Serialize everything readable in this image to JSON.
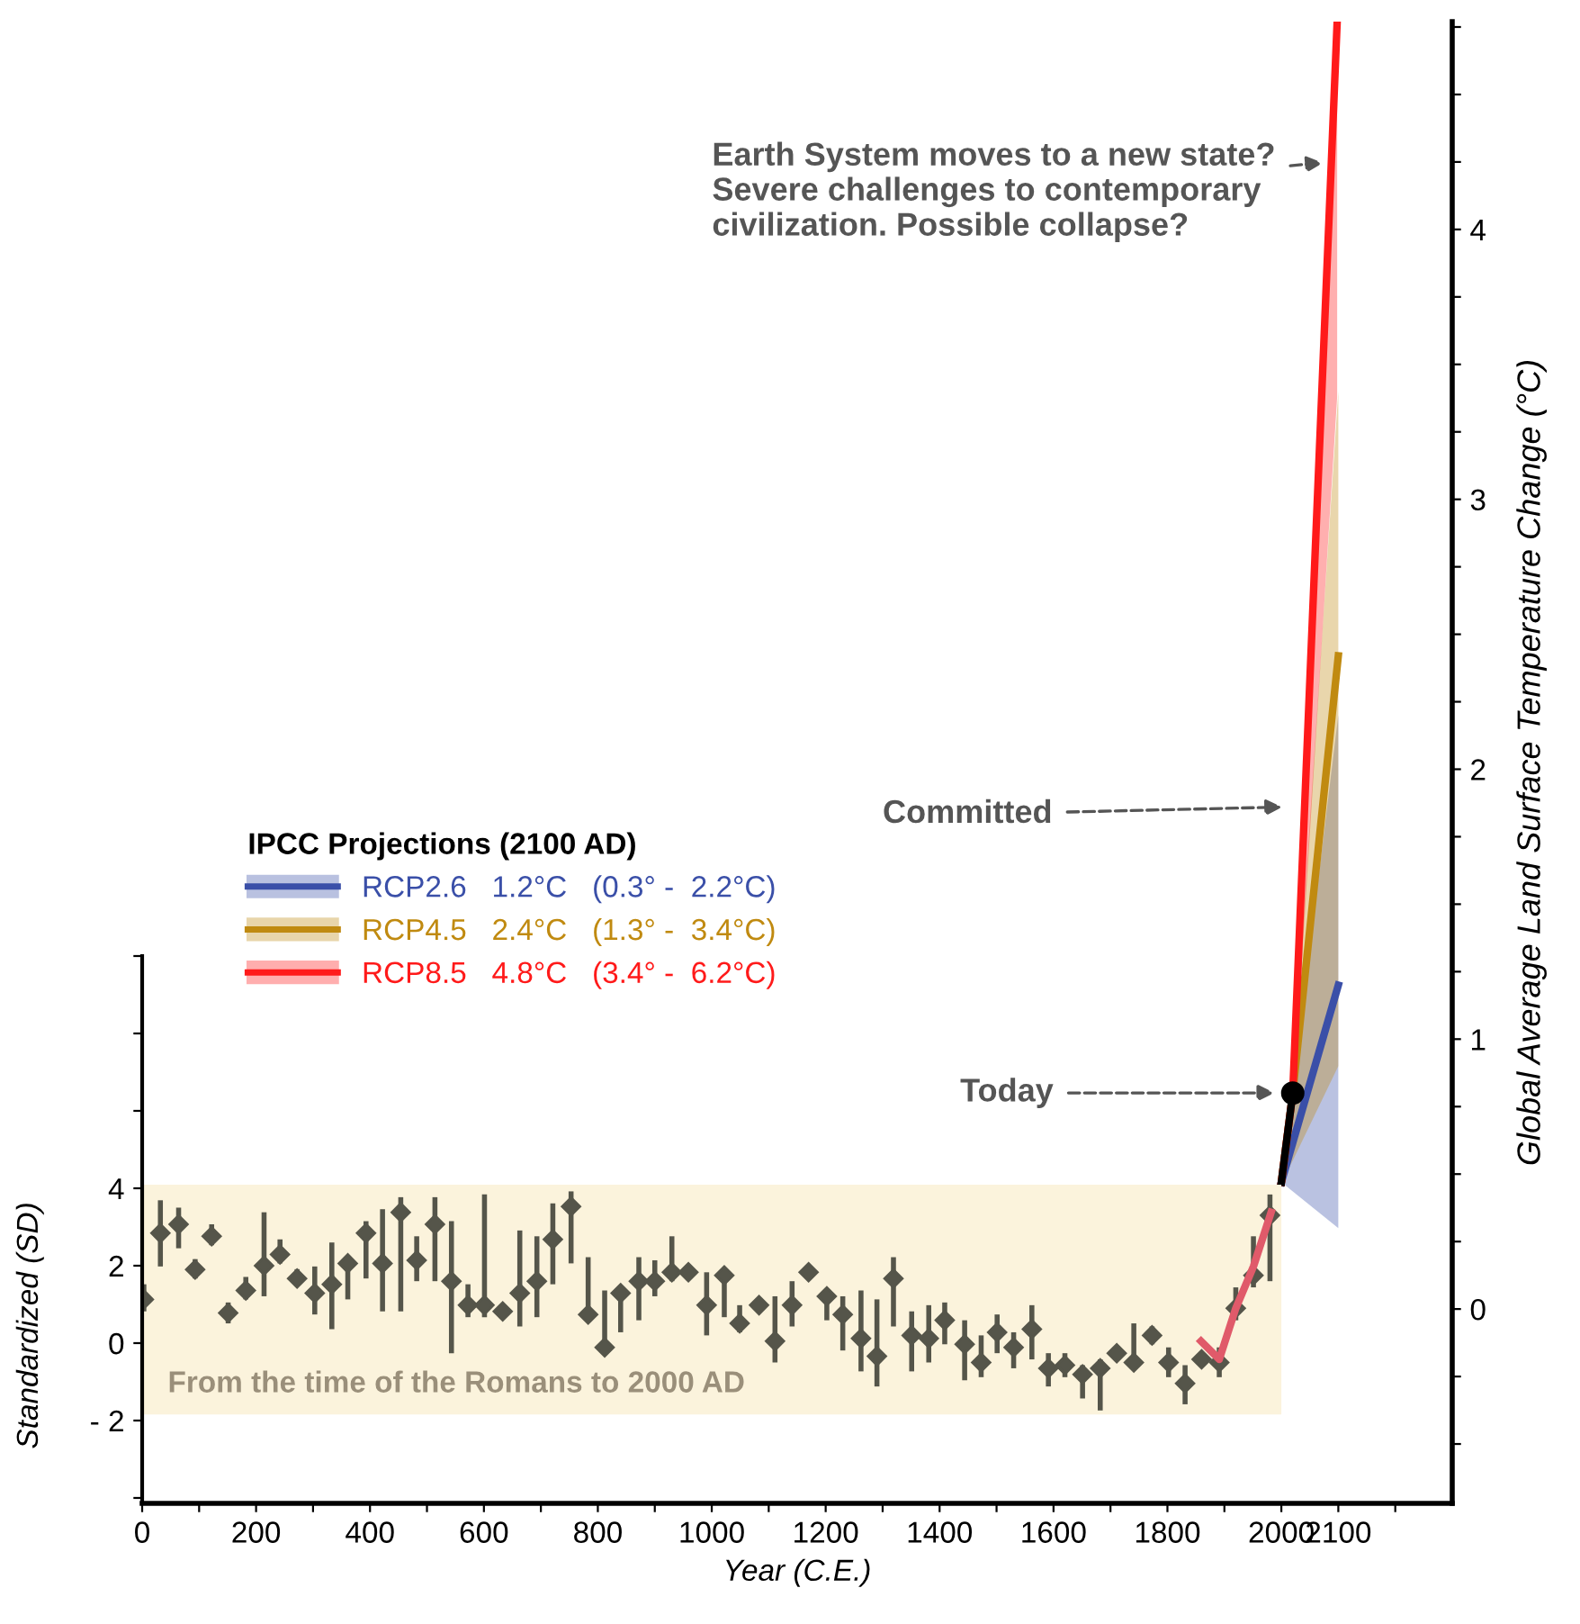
{
  "chart_data": {
    "type": "scatter",
    "xlabel": "Year (C.E.)",
    "ylabel": "Standardized (SD)",
    "y2label": "Global Average Land Surface Temperature Change (°C)",
    "legend_title": "IPCC Projections (2100 AD)",
    "legend": "left",
    "xlim": [
      0,
      2300
    ],
    "xticks": [
      0,
      {
        "value": 100,
        "label": null
      },
      200,
      {
        "value": 300,
        "label": null
      },
      400,
      {
        "value": 500,
        "label": null
      },
      600,
      {
        "value": 700,
        "label": null
      },
      800,
      {
        "value": 900,
        "label": null
      },
      1000,
      {
        "value": 1100,
        "label": null
      },
      1200,
      {
        "value": 1300,
        "label": null
      },
      1400,
      {
        "value": 1500,
        "label": null
      },
      1600,
      {
        "value": 1700,
        "label": null
      },
      1800,
      {
        "value": 1900,
        "label": null
      },
      2000,
      2100,
      {
        "value": 2200,
        "label": null
      }
    ],
    "ylim": [
      -4.14,
      34.14
    ],
    "yticks": [
      {
        "value": -4,
        "label": null
      },
      {
        "value": -2,
        "label": "- 2"
      },
      0,
      2,
      4,
      {
        "value": 6,
        "label": null
      },
      {
        "value": 8,
        "label": null
      },
      {
        "value": 10,
        "label": null
      }
    ],
    "y2lim": [
      -0.72,
      4.77
    ],
    "y2ticks": [
      {
        "value": -0.5,
        "label": null
      },
      {
        "value": -0.25,
        "label": null
      },
      0,
      {
        "value": 0.25,
        "label": null
      },
      {
        "value": 0.5,
        "label": null
      },
      {
        "value": 0.75,
        "label": null
      },
      1,
      {
        "value": 1.25,
        "label": null
      },
      {
        "value": 1.5,
        "label": null
      },
      {
        "value": 1.75,
        "label": null
      },
      2,
      {
        "value": 2.25,
        "label": null
      },
      {
        "value": 2.5,
        "label": null
      },
      {
        "value": 2.75,
        "label": null
      },
      3,
      {
        "value": 3.25,
        "label": null
      },
      {
        "value": 3.5,
        "label": null
      },
      {
        "value": 3.75,
        "label": null
      },
      4,
      {
        "value": 4.25,
        "label": null
      },
      {
        "value": 4.5,
        "label": null
      },
      {
        "value": 4.75,
        "label": null
      }
    ],
    "bands": [
      {
        "axis": "x",
        "from": 0,
        "to": 2000,
        "label": "From the time of the Romans to 2000 AD",
        "color": "#fbf3dc"
      }
    ],
    "series": [
      {
        "axis": "y",
        "color": "#55554a",
        "marker": "diamond",
        "x": [
          3,
          32,
          64,
          93,
          122,
          151,
          182,
          214,
          242,
          272,
          303,
          333,
          361,
          393,
          422,
          454,
          482,
          514,
          543,
          572,
          601,
          633,
          663,
          693,
          721,
          753,
          783,
          812,
          840,
          872,
          900,
          930,
          959,
          991,
          1022,
          1049,
          1083,
          1111,
          1141,
          1170,
          1202,
          1230,
          1262,
          1290,
          1319,
          1351,
          1381,
          1409,
          1444,
          1473,
          1501,
          1530,
          1562,
          1591,
          1620,
          1651,
          1682,
          1711,
          1741,
          1773,
          1802,
          1831,
          1860,
          1891,
          1920,
          1951,
          1980
        ],
        "values": [
          1.13,
          2.84,
          3.07,
          1.9,
          2.76,
          0.78,
          1.36,
          2.0,
          2.29,
          1.67,
          1.29,
          1.52,
          2.06,
          2.84,
          2.06,
          3.38,
          2.14,
          3.07,
          1.6,
          0.98,
          0.98,
          0.82,
          1.29,
          1.6,
          2.68,
          3.53,
          0.74,
          -0.11,
          1.29,
          1.6,
          1.6,
          1.83,
          1.83,
          0.98,
          1.75,
          0.51,
          0.98,
          0.05,
          0.98,
          1.83,
          1.21,
          0.74,
          0.12,
          -0.34,
          1.67,
          0.2,
          0.12,
          0.59,
          -0.03,
          -0.5,
          0.28,
          -0.11,
          0.36,
          -0.65,
          -0.57,
          -0.81,
          -0.65,
          -0.26,
          -0.5,
          0.2,
          -0.5,
          -1.04,
          -0.42,
          -0.5,
          0.9,
          1.75,
          3.3
        ],
        "errors": [
          [
            0.82,
            1.52
          ],
          [
            1.98,
            3.69
          ],
          [
            2.45,
            3.5
          ],
          [
            1.67,
            2.17
          ],
          [
            2.53,
            3.07
          ],
          [
            0.51,
            1.05
          ],
          [
            1.13,
            1.71
          ],
          [
            1.21,
            3.38
          ],
          [
            2.06,
            2.68
          ],
          [
            1.49,
            1.91
          ],
          [
            0.74,
            1.98
          ],
          [
            0.36,
            2.6
          ],
          [
            1.13,
            2.22
          ],
          [
            1.67,
            3.15
          ],
          [
            0.82,
            3.46
          ],
          [
            0.82,
            3.77
          ],
          [
            1.6,
            2.76
          ],
          [
            1.6,
            3.77
          ],
          [
            -0.26,
            3.15
          ],
          [
            0.67,
            1.52
          ],
          [
            0.67,
            3.84
          ],
          [
            0.67,
            0.98
          ],
          [
            0.43,
            2.91
          ],
          [
            0.67,
            2.76
          ],
          [
            1.52,
            3.61
          ],
          [
            2.06,
            3.92
          ],
          [
            0.59,
            2.22
          ],
          [
            -0.26,
            1.36
          ],
          [
            0.28,
            1.36
          ],
          [
            0.59,
            2.22
          ],
          [
            1.21,
            2.14
          ],
          [
            1.6,
            2.76
          ],
          [
            1.67,
            1.98
          ],
          [
            0.2,
            1.83
          ],
          [
            0.67,
            1.91
          ],
          [
            0.28,
            0.98
          ],
          [
            0.82,
            1.05
          ],
          [
            -0.5,
            1.21
          ],
          [
            0.43,
            1.6
          ],
          [
            1.67,
            1.98
          ],
          [
            0.59,
            1.36
          ],
          [
            -0.19,
            1.21
          ],
          [
            -0.73,
            1.36
          ],
          [
            -1.12,
            1.13
          ],
          [
            0.43,
            2.22
          ],
          [
            -0.73,
            0.82
          ],
          [
            -0.5,
            0.98
          ],
          [
            -0.03,
            1.05
          ],
          [
            -0.96,
            0.59
          ],
          [
            -0.88,
            0.2
          ],
          [
            -0.26,
            0.74
          ],
          [
            -0.65,
            0.28
          ],
          [
            -0.42,
            0.98
          ],
          [
            -1.12,
            -0.26
          ],
          [
            -0.88,
            -0.26
          ],
          [
            -1.43,
            -0.57
          ],
          [
            -1.74,
            -0.42
          ],
          [
            -0.42,
            -0.11
          ],
          [
            -0.65,
            0.51
          ],
          [
            -0.03,
            0.43
          ],
          [
            -0.88,
            -0.11
          ],
          [
            -1.58,
            -0.57
          ],
          [
            -0.57,
            -0.26
          ],
          [
            -0.88,
            -0.11
          ],
          [
            0.59,
            1.44
          ],
          [
            1.44,
            2.76
          ],
          [
            1.6,
            3.84
          ]
        ]
      },
      {
        "type": "line",
        "axis": "y",
        "color": "#e05a6a",
        "x": [
          1859,
          1891,
          1920,
          1951,
          1982
        ],
        "values": [
          0.05,
          -0.42,
          0.9,
          1.98,
          3.38
        ]
      },
      {
        "type": "line",
        "axis": "y2",
        "name": "RCP2.6   1.2°C   (0.3° -  2.2°C)",
        "color": "#3a4fa8",
        "x": [
          2000,
          2100
        ],
        "values": [
          0.47,
          1.2
        ],
        "lower": [
          0.47,
          0.3
        ],
        "upper": [
          0.47,
          2.2
        ]
      },
      {
        "type": "line",
        "axis": "y2",
        "name": "RCP4.5   2.4°C   (1.3° -  3.4°C)",
        "color": "#c08a10",
        "x": [
          2000,
          2020,
          2100
        ],
        "values": [
          0.47,
          0.8,
          2.42
        ],
        "lower": [
          0.47,
          0.55,
          0.9
        ],
        "upper": [
          0.47,
          0.85,
          3.4
        ]
      },
      {
        "type": "line",
        "axis": "y2",
        "name": "RCP8.5   4.8°C   (3.4° -  6.2°C)",
        "color": "#ff1a1a",
        "x": [
          2000,
          2020,
          2098
        ],
        "values": [
          0.47,
          0.8,
          4.77
        ],
        "lower": [
          0.47,
          0.75,
          3.38
        ],
        "upper": [
          0.47,
          0.9,
          4.77
        ]
      },
      {
        "type": "line",
        "axis": "y2",
        "color": "#000000",
        "x": [
          2000,
          2020
        ],
        "values": [
          0.47,
          0.8
        ]
      },
      {
        "type": "scatter",
        "axis": "y2",
        "color": "#000000",
        "marker": "circle",
        "x": [
          2020
        ],
        "values": [
          0.8
        ]
      }
    ],
    "annotations": [
      "Today",
      "Committed",
      "Earth System moves to a new state? Severe challenges to contemporary civilization. Possible collapse?"
    ]
  }
}
